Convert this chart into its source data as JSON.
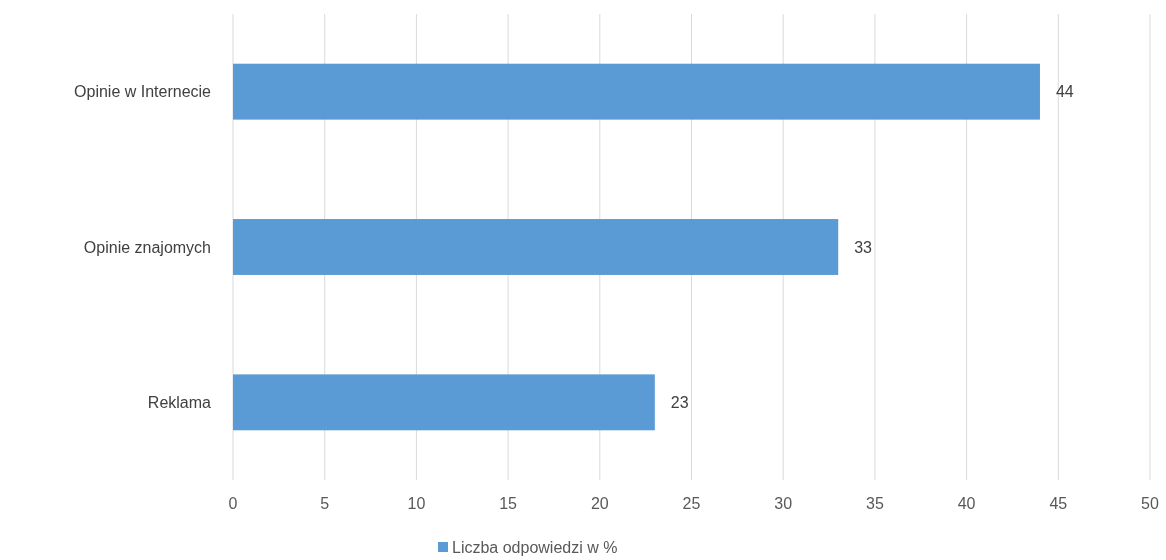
{
  "chart_data": {
    "type": "bar",
    "orientation": "horizontal",
    "categories": [
      "Opinie w Internecie",
      "Opinie znajomych",
      "Reklama"
    ],
    "series": [
      {
        "name": "Liczba odpowiedzi w %",
        "color": "#5b9bd5",
        "values": [
          44,
          33,
          23
        ]
      }
    ],
    "xlim": [
      0,
      50
    ],
    "xticks": [
      0,
      5,
      10,
      15,
      20,
      25,
      30,
      35,
      40,
      45,
      50
    ],
    "grid": "x",
    "legend": "bottom",
    "data_labels": true
  }
}
